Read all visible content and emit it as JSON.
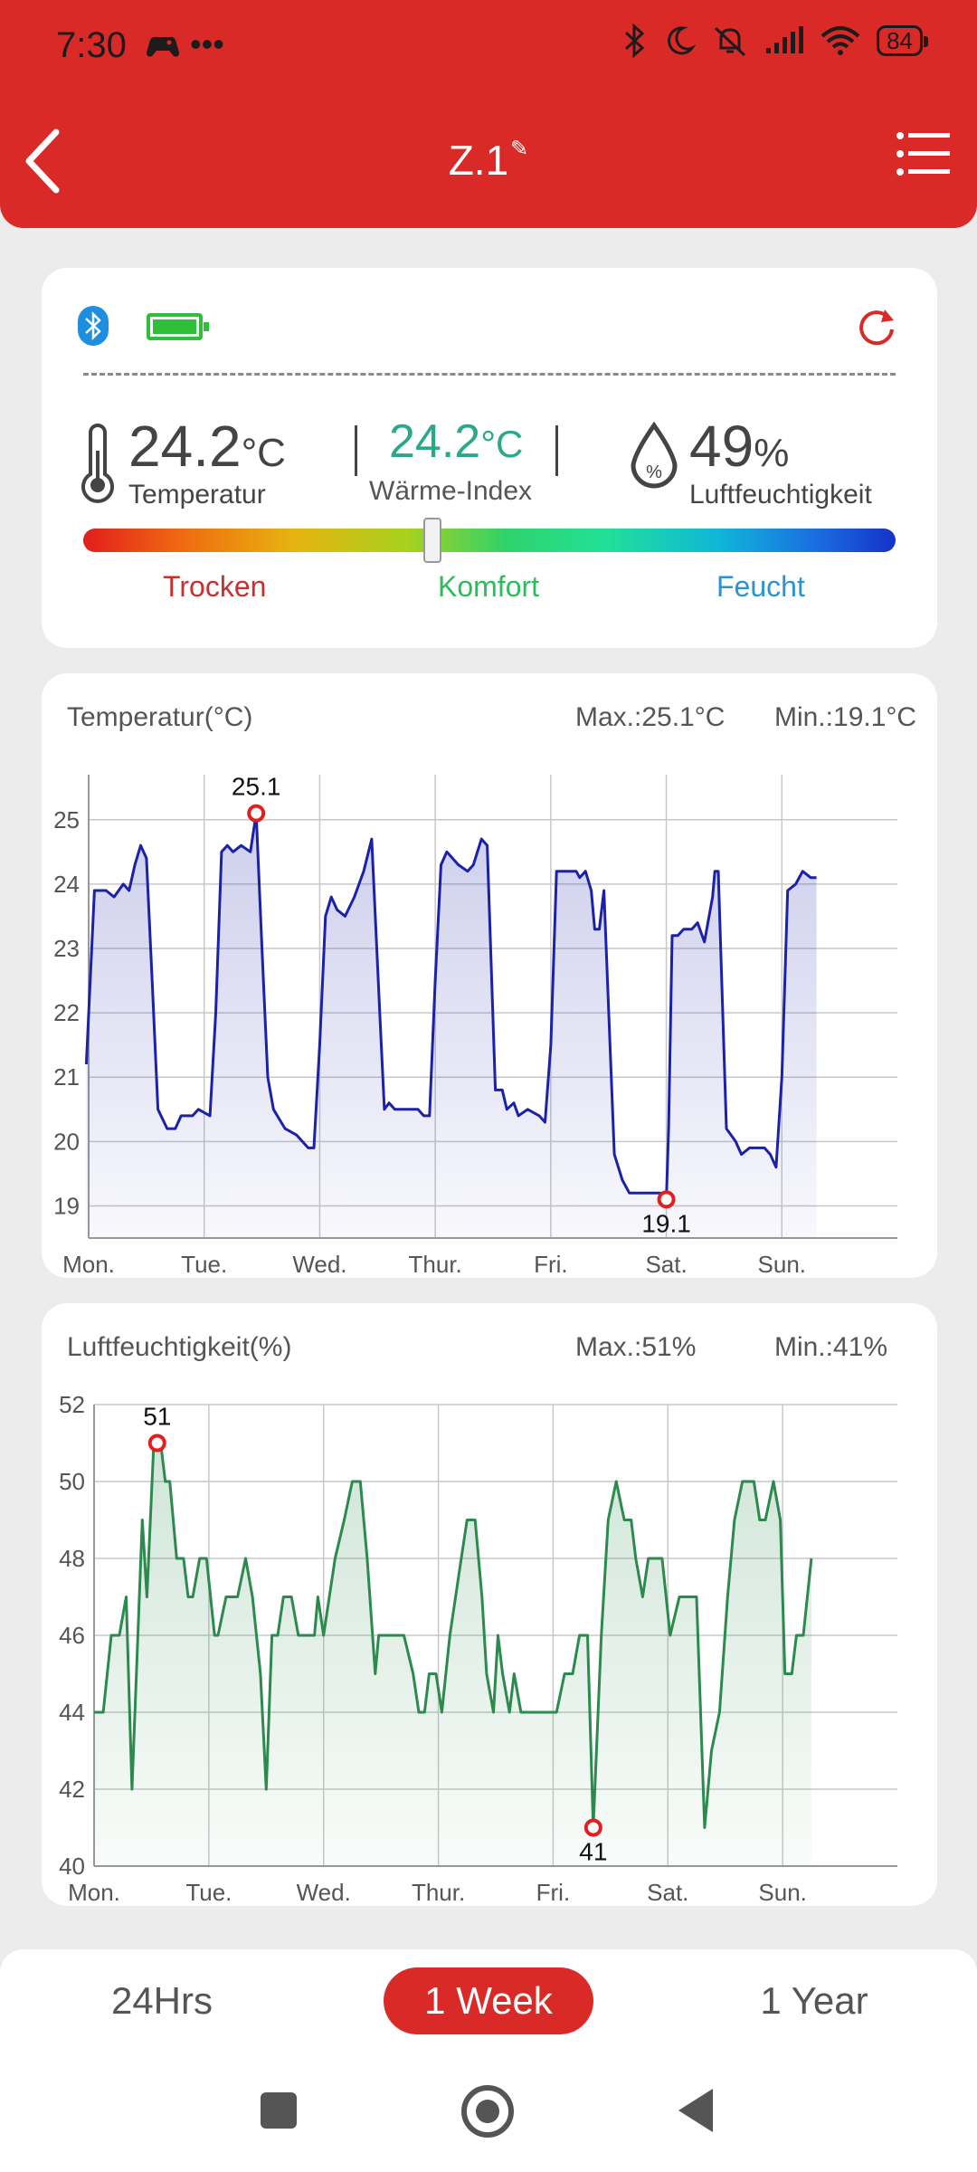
{
  "status_bar": {
    "time": "7:30",
    "left_icons": "•••",
    "battery": "84"
  },
  "header": {
    "title": "Z.1",
    "edit_glyph": "✎"
  },
  "summary": {
    "temperature": {
      "value": "24.2",
      "unit": "°C",
      "label": "Temperatur"
    },
    "heat_index": {
      "value": "24.2",
      "unit": "°C",
      "label": "Wärme-Index"
    },
    "humidity": {
      "value": "49",
      "unit": "%",
      "label": "Luftfeuchtigkeit"
    },
    "comfort_levels": {
      "dry": "Trocken",
      "comfort": "Komfort",
      "wet": "Feucht"
    },
    "comfort_position": 0.43,
    "colors": {
      "dry": "#c8312d",
      "comfort": "#2bbd5a",
      "wet": "#2894d2",
      "heat_index": "#2aa98a"
    }
  },
  "temp_chart": {
    "title": "Temperatur(°C)",
    "max_label": "Max.:25.1°C",
    "min_label": "Min.:19.1°C"
  },
  "hum_chart": {
    "title": "Luftfeuchtigkeit(%)",
    "max_label": "Max.:51%",
    "min_label": "Min.:41%"
  },
  "tabs": {
    "day": "24Hrs",
    "week": "1 Week",
    "year": "1 Year",
    "active": "week"
  },
  "chart_data": [
    {
      "type": "area",
      "title": "Temperatur(°C)",
      "color": "#1c22a8",
      "categories": [
        "Mon.",
        "Tue.",
        "Wed.",
        "Thur.",
        "Fri.",
        "Sat.",
        "Sun."
      ],
      "yticks": [
        19,
        20,
        21,
        22,
        23,
        24,
        25
      ],
      "ylim": [
        18.5,
        25.7
      ],
      "xlim": [
        0,
        7
      ],
      "grid": true,
      "max_point": {
        "x": 1.45,
        "y": 25.1,
        "label": "25.1"
      },
      "min_point": {
        "x": 5.0,
        "y": 19.1,
        "label": "19.1"
      },
      "points": [
        [
          -0.02,
          21.2
        ],
        [
          0.05,
          23.9
        ],
        [
          0.15,
          23.9
        ],
        [
          0.22,
          23.8
        ],
        [
          0.3,
          24.0
        ],
        [
          0.35,
          23.9
        ],
        [
          0.4,
          24.3
        ],
        [
          0.45,
          24.6
        ],
        [
          0.5,
          24.4
        ],
        [
          0.55,
          22.5
        ],
        [
          0.6,
          20.5
        ],
        [
          0.68,
          20.2
        ],
        [
          0.75,
          20.2
        ],
        [
          0.8,
          20.4
        ],
        [
          0.9,
          20.4
        ],
        [
          0.95,
          20.5
        ],
        [
          1.05,
          20.4
        ],
        [
          1.1,
          22.0
        ],
        [
          1.15,
          24.5
        ],
        [
          1.2,
          24.6
        ],
        [
          1.25,
          24.5
        ],
        [
          1.32,
          24.6
        ],
        [
          1.4,
          24.5
        ],
        [
          1.45,
          25.1
        ],
        [
          1.5,
          23.0
        ],
        [
          1.55,
          21.0
        ],
        [
          1.6,
          20.5
        ],
        [
          1.7,
          20.2
        ],
        [
          1.8,
          20.1
        ],
        [
          1.9,
          19.9
        ],
        [
          1.95,
          19.9
        ],
        [
          2.0,
          21.5
        ],
        [
          2.05,
          23.5
        ],
        [
          2.1,
          23.8
        ],
        [
          2.15,
          23.6
        ],
        [
          2.22,
          23.5
        ],
        [
          2.3,
          23.8
        ],
        [
          2.38,
          24.2
        ],
        [
          2.45,
          24.7
        ],
        [
          2.52,
          22.0
        ],
        [
          2.56,
          20.5
        ],
        [
          2.6,
          20.6
        ],
        [
          2.65,
          20.5
        ],
        [
          2.85,
          20.5
        ],
        [
          2.9,
          20.4
        ],
        [
          2.95,
          20.4
        ],
        [
          3.0,
          22.5
        ],
        [
          3.05,
          24.3
        ],
        [
          3.1,
          24.5
        ],
        [
          3.2,
          24.3
        ],
        [
          3.28,
          24.2
        ],
        [
          3.33,
          24.3
        ],
        [
          3.4,
          24.7
        ],
        [
          3.45,
          24.6
        ],
        [
          3.52,
          20.8
        ],
        [
          3.58,
          20.8
        ],
        [
          3.62,
          20.5
        ],
        [
          3.68,
          20.6
        ],
        [
          3.72,
          20.4
        ],
        [
          3.8,
          20.5
        ],
        [
          3.9,
          20.4
        ],
        [
          3.95,
          20.3
        ],
        [
          4.0,
          21.5
        ],
        [
          4.05,
          24.2
        ],
        [
          4.15,
          24.2
        ],
        [
          4.22,
          24.2
        ],
        [
          4.25,
          24.1
        ],
        [
          4.3,
          24.2
        ],
        [
          4.35,
          23.9
        ],
        [
          4.38,
          23.3
        ],
        [
          4.42,
          23.3
        ],
        [
          4.46,
          23.9
        ],
        [
          4.55,
          19.8
        ],
        [
          4.62,
          19.4
        ],
        [
          4.68,
          19.2
        ],
        [
          4.8,
          19.2
        ],
        [
          4.9,
          19.2
        ],
        [
          4.95,
          19.2
        ],
        [
          5.0,
          19.1
        ],
        [
          5.02,
          20.2
        ],
        [
          5.05,
          23.2
        ],
        [
          5.1,
          23.2
        ],
        [
          5.15,
          23.3
        ],
        [
          5.22,
          23.3
        ],
        [
          5.27,
          23.4
        ],
        [
          5.33,
          23.1
        ],
        [
          5.4,
          23.8
        ],
        [
          5.42,
          24.2
        ],
        [
          5.45,
          24.2
        ],
        [
          5.52,
          20.2
        ],
        [
          5.6,
          20.0
        ],
        [
          5.65,
          19.8
        ],
        [
          5.72,
          19.9
        ],
        [
          5.85,
          19.9
        ],
        [
          5.9,
          19.8
        ],
        [
          5.95,
          19.6
        ],
        [
          6.0,
          21.0
        ],
        [
          6.05,
          23.9
        ],
        [
          6.12,
          24.0
        ],
        [
          6.18,
          24.2
        ],
        [
          6.25,
          24.1
        ],
        [
          6.3,
          24.1
        ]
      ]
    },
    {
      "type": "area",
      "title": "Luftfeuchtigkeit(%)",
      "color": "#2c8a4e",
      "categories": [
        "Mon.",
        "Tue.",
        "Wed.",
        "Thur.",
        "Fri.",
        "Sat.",
        "Sun."
      ],
      "yticks": [
        40,
        42,
        44,
        46,
        48,
        50,
        52
      ],
      "ylim": [
        40,
        52
      ],
      "xlim": [
        0,
        7
      ],
      "grid": true,
      "max_point": {
        "x": 0.55,
        "y": 51,
        "label": "51"
      },
      "min_point": {
        "x": 4.35,
        "y": 41,
        "label": "41"
      },
      "points": [
        [
          0.0,
          44
        ],
        [
          0.08,
          44
        ],
        [
          0.15,
          46
        ],
        [
          0.22,
          46
        ],
        [
          0.28,
          47
        ],
        [
          0.33,
          42
        ],
        [
          0.42,
          49
        ],
        [
          0.46,
          47
        ],
        [
          0.52,
          51
        ],
        [
          0.58,
          51
        ],
        [
          0.62,
          50
        ],
        [
          0.66,
          50
        ],
        [
          0.72,
          48
        ],
        [
          0.78,
          48
        ],
        [
          0.82,
          47
        ],
        [
          0.86,
          47
        ],
        [
          0.92,
          48
        ],
        [
          0.98,
          48
        ],
        [
          1.05,
          46
        ],
        [
          1.08,
          46
        ],
        [
          1.15,
          47
        ],
        [
          1.25,
          47
        ],
        [
          1.32,
          48
        ],
        [
          1.38,
          47
        ],
        [
          1.45,
          45
        ],
        [
          1.5,
          42
        ],
        [
          1.55,
          46
        ],
        [
          1.6,
          46
        ],
        [
          1.65,
          47
        ],
        [
          1.72,
          47
        ],
        [
          1.78,
          46
        ],
        [
          1.88,
          46
        ],
        [
          1.92,
          46
        ],
        [
          1.95,
          47
        ],
        [
          2.0,
          46
        ],
        [
          2.1,
          48
        ],
        [
          2.18,
          49
        ],
        [
          2.25,
          50
        ],
        [
          2.32,
          50
        ],
        [
          2.38,
          48
        ],
        [
          2.45,
          45
        ],
        [
          2.48,
          46
        ],
        [
          2.6,
          46
        ],
        [
          2.7,
          46
        ],
        [
          2.78,
          45
        ],
        [
          2.83,
          44
        ],
        [
          2.88,
          44
        ],
        [
          2.92,
          45
        ],
        [
          2.98,
          45
        ],
        [
          3.03,
          44
        ],
        [
          3.1,
          46
        ],
        [
          3.2,
          48
        ],
        [
          3.25,
          49
        ],
        [
          3.32,
          49
        ],
        [
          3.38,
          47
        ],
        [
          3.42,
          45
        ],
        [
          3.48,
          44
        ],
        [
          3.52,
          46
        ],
        [
          3.56,
          45
        ],
        [
          3.62,
          44
        ],
        [
          3.66,
          45
        ],
        [
          3.72,
          44
        ],
        [
          3.8,
          44
        ],
        [
          3.95,
          44
        ],
        [
          4.03,
          44
        ],
        [
          4.1,
          45
        ],
        [
          4.17,
          45
        ],
        [
          4.23,
          46
        ],
        [
          4.3,
          46
        ],
        [
          4.35,
          41
        ],
        [
          4.42,
          46
        ],
        [
          4.48,
          49
        ],
        [
          4.55,
          50
        ],
        [
          4.62,
          49
        ],
        [
          4.68,
          49
        ],
        [
          4.72,
          48
        ],
        [
          4.78,
          47
        ],
        [
          4.83,
          48
        ],
        [
          4.95,
          48
        ],
        [
          5.02,
          46
        ],
        [
          5.1,
          47
        ],
        [
          5.25,
          47
        ],
        [
          5.32,
          41
        ],
        [
          5.38,
          43
        ],
        [
          5.45,
          44
        ],
        [
          5.52,
          47
        ],
        [
          5.58,
          49
        ],
        [
          5.65,
          50
        ],
        [
          5.75,
          50
        ],
        [
          5.8,
          49
        ],
        [
          5.85,
          49
        ],
        [
          5.92,
          50
        ],
        [
          5.98,
          49
        ],
        [
          6.02,
          45
        ],
        [
          6.08,
          45
        ],
        [
          6.12,
          46
        ],
        [
          6.18,
          46
        ],
        [
          6.25,
          48
        ]
      ]
    }
  ]
}
